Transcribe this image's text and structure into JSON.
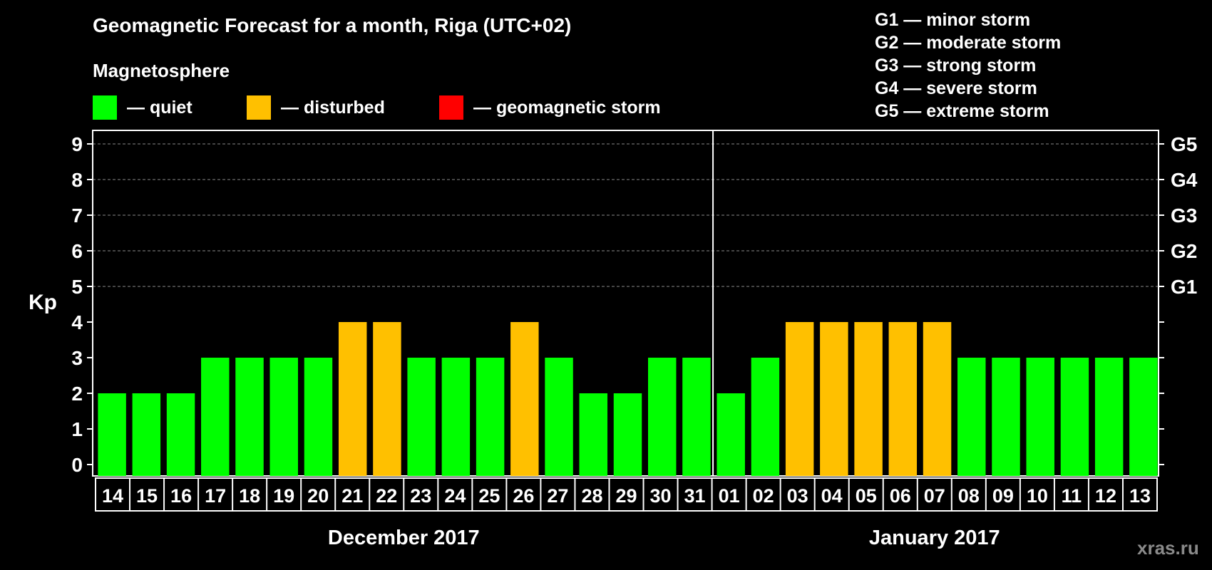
{
  "title": "Geomagnetic Forecast for a month, Riga (UTC+02)",
  "subtitle": "Magnetosphere",
  "colors": {
    "quiet": "#00ff00",
    "disturbed": "#ffc000",
    "storm": "#ff0000",
    "background": "#000000",
    "axis": "#ffffff",
    "grid": "#888888",
    "watermark": "#8a8a8a"
  },
  "legend": {
    "quiet": "— quiet",
    "disturbed": "— disturbed",
    "storm": "— geomagnetic storm"
  },
  "g_legend": [
    "G1 — minor storm",
    "G2 — moderate storm",
    "G3 — strong storm",
    "G4 — severe storm",
    "G5 — extreme storm"
  ],
  "watermark": "xras.ru",
  "chart_data": {
    "type": "bar",
    "ylabel": "Kp",
    "ylim": [
      0,
      9
    ],
    "yticks": [
      "0",
      "1",
      "2",
      "3",
      "4",
      "5",
      "6",
      "7",
      "8",
      "9"
    ],
    "right_axis_labels": [
      {
        "kp": 5,
        "label": "G1"
      },
      {
        "kp": 6,
        "label": "G2"
      },
      {
        "kp": 7,
        "label": "G3"
      },
      {
        "kp": 8,
        "label": "G4"
      },
      {
        "kp": 9,
        "label": "G5"
      }
    ],
    "categories": [
      "14",
      "15",
      "16",
      "17",
      "18",
      "19",
      "20",
      "21",
      "22",
      "23",
      "24",
      "25",
      "26",
      "27",
      "28",
      "29",
      "30",
      "31",
      "01",
      "02",
      "03",
      "04",
      "05",
      "06",
      "07",
      "08",
      "09",
      "10",
      "11",
      "12",
      "13"
    ],
    "values": [
      2,
      2,
      2,
      3,
      3,
      3,
      3,
      4,
      4,
      3,
      3,
      3,
      4,
      3,
      2,
      2,
      3,
      3,
      2,
      3,
      4,
      4,
      4,
      4,
      4,
      3,
      3,
      3,
      3,
      3,
      3
    ],
    "status": [
      "quiet",
      "quiet",
      "quiet",
      "quiet",
      "quiet",
      "quiet",
      "quiet",
      "disturbed",
      "disturbed",
      "quiet",
      "quiet",
      "quiet",
      "disturbed",
      "quiet",
      "quiet",
      "quiet",
      "quiet",
      "quiet",
      "quiet",
      "quiet",
      "disturbed",
      "disturbed",
      "disturbed",
      "disturbed",
      "disturbed",
      "quiet",
      "quiet",
      "quiet",
      "quiet",
      "quiet",
      "quiet"
    ],
    "months": [
      {
        "label": "December 2017",
        "days": 18
      },
      {
        "label": "January 2017",
        "days": 13
      }
    ]
  }
}
